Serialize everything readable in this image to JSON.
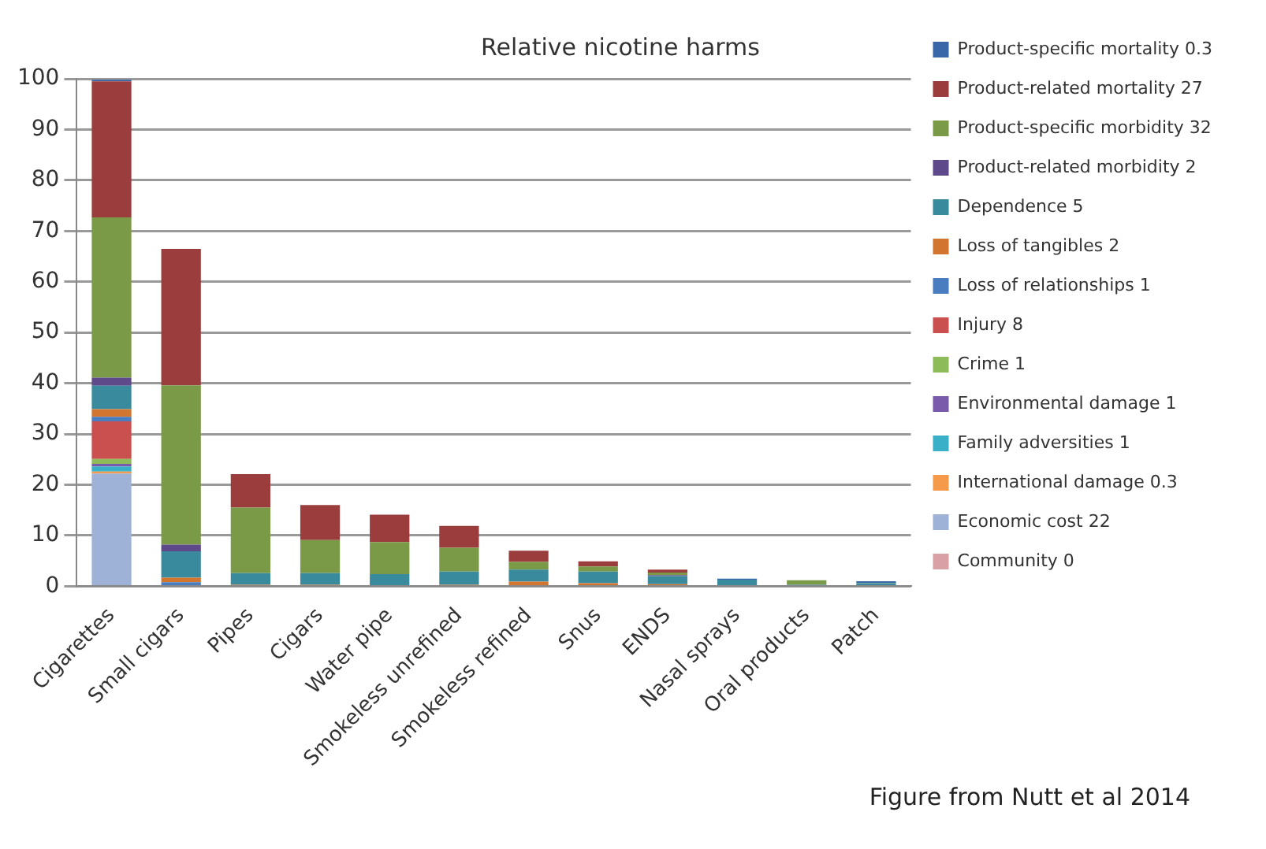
{
  "chart_data": {
    "type": "bar",
    "title": "Relative nicotine harms",
    "stacked": true,
    "categories": [
      "Cigarettes",
      "Small cigars",
      "Pipes",
      "Cigars",
      "Water pipe",
      "Smokeless unrefined",
      "Smokeless refined",
      "Snus",
      "ENDS",
      "Nasal sprays",
      "Oral products",
      "Patch"
    ],
    "series": [
      {
        "name": "Community 0",
        "color": "#d9a0a6",
        "values": [
          0,
          0,
          0,
          0,
          0,
          0,
          0,
          0,
          0,
          0,
          0,
          0
        ]
      },
      {
        "name": "Economic cost 22",
        "color": "#9eb2d8",
        "values": [
          22.2,
          0,
          0,
          0,
          0,
          0,
          0,
          0,
          0,
          0,
          0,
          0
        ]
      },
      {
        "name": "International damage 0.3",
        "color": "#f59a4a",
        "values": [
          0.4,
          0,
          0,
          0,
          0,
          0,
          0,
          0,
          0,
          0,
          0,
          0
        ]
      },
      {
        "name": "Family adversities 1",
        "color": "#3ab0c8",
        "values": [
          1,
          0,
          0,
          0,
          0,
          0,
          0,
          0,
          0,
          0,
          0,
          0
        ]
      },
      {
        "name": "Environmental damage 1",
        "color": "#7a5aaa",
        "values": [
          0.5,
          0,
          0,
          0,
          0,
          0,
          0,
          0,
          0,
          0,
          0,
          0
        ]
      },
      {
        "name": "Crime 1",
        "color": "#8dbb5a",
        "values": [
          1,
          0,
          0,
          0,
          0,
          0,
          0,
          0,
          0,
          0,
          0,
          0
        ]
      },
      {
        "name": "Injury 8",
        "color": "#c9504e",
        "values": [
          7.4,
          0,
          0,
          0,
          0,
          0,
          0,
          0,
          0,
          0,
          0,
          0
        ]
      },
      {
        "name": "Loss of relationships 1",
        "color": "#4a7cc0",
        "values": [
          0.9,
          0.8,
          0,
          0,
          0,
          0,
          0,
          0,
          0,
          0,
          0,
          0
        ]
      },
      {
        "name": "Loss of tangibles 2",
        "color": "#d2752e",
        "values": [
          1.5,
          0.9,
          0.3,
          0.3,
          0,
          0.3,
          0.9,
          0.6,
          0.4,
          0,
          0,
          0
        ]
      },
      {
        "name": "Dependence 5",
        "color": "#3a8a9e",
        "values": [
          4.6,
          5.2,
          2.3,
          2.3,
          2.4,
          2.6,
          2.4,
          2.3,
          1.6,
          1.3,
          0.3,
          0.6
        ]
      },
      {
        "name": "Product-related morbidity 2",
        "color": "#5e4a8a",
        "values": [
          1.6,
          1.3,
          0,
          0,
          0,
          0,
          0,
          0,
          0.2,
          0,
          0,
          0
        ]
      },
      {
        "name": "Product-specific morbidity 32",
        "color": "#7a9a48",
        "values": [
          31.6,
          31.4,
          12.9,
          6.5,
          6.3,
          4.7,
          1.5,
          1,
          0.5,
          0,
          0.9,
          0.1
        ]
      },
      {
        "name": "Product-related mortality 27",
        "color": "#9c3d3d",
        "values": [
          26.8,
          26.9,
          6.6,
          6.9,
          5.4,
          4.3,
          2.2,
          1,
          0.6,
          0,
          0,
          0
        ]
      },
      {
        "name": "Product-specific mortality 0.3",
        "color": "#3a67a8",
        "values": [
          0.3,
          0,
          0,
          0,
          0,
          0,
          0,
          0,
          0,
          0.2,
          0,
          0.3
        ]
      }
    ],
    "ylim": [
      0,
      100
    ],
    "yticks": [
      0,
      10,
      20,
      30,
      40,
      50,
      60,
      70,
      80,
      90,
      100
    ],
    "grid": "y",
    "legend": "right",
    "annotations": [
      "Figure from Nutt et al 2014"
    ]
  }
}
